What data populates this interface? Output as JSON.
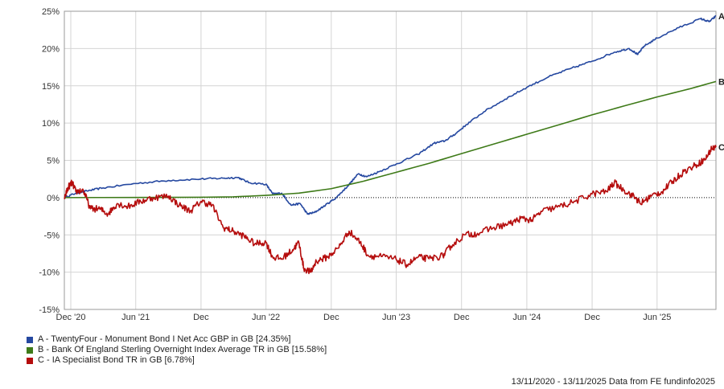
{
  "chart_data": {
    "type": "line",
    "ylim": [
      -15,
      25
    ],
    "yticks": [
      "25%",
      "20%",
      "15%",
      "10%",
      "5%",
      "0%",
      "-5%",
      "-10%",
      "-15%"
    ],
    "ytick_values": [
      25,
      20,
      15,
      10,
      5,
      0,
      -5,
      -10,
      -15
    ],
    "xticks": [
      "Dec '20",
      "Jun '21",
      "Dec",
      "Jun '22",
      "Dec",
      "Jun '23",
      "Dec",
      "Jun '24",
      "Dec",
      "Jun '25"
    ],
    "xtick_dates": [
      "2020-12-01",
      "2021-06-01",
      "2021-12-01",
      "2022-06-01",
      "2022-12-01",
      "2023-06-01",
      "2023-12-01",
      "2024-06-01",
      "2024-12-01",
      "2025-06-01"
    ],
    "x_range": [
      "2020-11-13",
      "2025-11-13"
    ],
    "grid": true,
    "zero_line": true,
    "series": [
      {
        "name": "A - TwentyFour - Monument Bond I Net Acc GBP in GB [24.35%]",
        "short": "A",
        "color": "#2548a0",
        "points": [
          [
            "2020-11-13",
            0
          ],
          [
            "2020-12-15",
            0.6
          ],
          [
            "2021-01-15",
            0.9
          ],
          [
            "2021-03-01",
            1.3
          ],
          [
            "2021-06-01",
            1.9
          ],
          [
            "2021-09-01",
            2.3
          ],
          [
            "2021-12-01",
            2.5
          ],
          [
            "2022-02-01",
            2.6
          ],
          [
            "2022-03-15",
            2.7
          ],
          [
            "2022-04-15",
            2.0
          ],
          [
            "2022-06-01",
            1.8
          ],
          [
            "2022-06-20",
            0.5
          ],
          [
            "2022-07-15",
            0.6
          ],
          [
            "2022-08-10",
            -1.0
          ],
          [
            "2022-09-05",
            -0.8
          ],
          [
            "2022-09-25",
            -2.2
          ],
          [
            "2022-10-15",
            -2.0
          ],
          [
            "2022-11-15",
            -1.0
          ],
          [
            "2022-12-15",
            0.0
          ],
          [
            "2023-01-15",
            1.5
          ],
          [
            "2023-02-15",
            3.2
          ],
          [
            "2023-03-10",
            2.8
          ],
          [
            "2023-04-15",
            3.5
          ],
          [
            "2023-06-01",
            4.5
          ],
          [
            "2023-08-01",
            5.8
          ],
          [
            "2023-09-15",
            7.3
          ],
          [
            "2023-10-15",
            7.6
          ],
          [
            "2023-11-15",
            8.6
          ],
          [
            "2023-12-15",
            9.8
          ],
          [
            "2024-02-01",
            11.5
          ],
          [
            "2024-04-01",
            13.2
          ],
          [
            "2024-06-01",
            14.8
          ],
          [
            "2024-08-01",
            16.2
          ],
          [
            "2024-10-01",
            17.3
          ],
          [
            "2024-12-01",
            18.3
          ],
          [
            "2025-02-01",
            19.5
          ],
          [
            "2025-03-15",
            20.0
          ],
          [
            "2025-04-08",
            19.2
          ],
          [
            "2025-04-25",
            20.3
          ],
          [
            "2025-06-01",
            21.4
          ],
          [
            "2025-08-01",
            22.8
          ],
          [
            "2025-10-01",
            24.0
          ],
          [
            "2025-10-25",
            23.6
          ],
          [
            "2025-11-13",
            24.35
          ]
        ]
      },
      {
        "name": "B - Bank Of England Sterling Overnight Index Average TR in GB [15.58%]",
        "short": "B",
        "color": "#3e7a18",
        "points": [
          [
            "2020-11-13",
            0
          ],
          [
            "2021-12-01",
            0.05
          ],
          [
            "2022-03-01",
            0.1
          ],
          [
            "2022-06-01",
            0.3
          ],
          [
            "2022-09-01",
            0.6
          ],
          [
            "2022-12-01",
            1.2
          ],
          [
            "2023-03-01",
            2.2
          ],
          [
            "2023-06-01",
            3.4
          ],
          [
            "2023-09-01",
            4.6
          ],
          [
            "2023-12-01",
            5.9
          ],
          [
            "2024-03-01",
            7.2
          ],
          [
            "2024-06-01",
            8.5
          ],
          [
            "2024-09-01",
            9.8
          ],
          [
            "2024-12-01",
            11.1
          ],
          [
            "2025-03-01",
            12.3
          ],
          [
            "2025-06-01",
            13.5
          ],
          [
            "2025-09-01",
            14.6
          ],
          [
            "2025-11-13",
            15.58
          ]
        ]
      },
      {
        "name": "C - IA Specialist Bond TR in GB [6.78%]",
        "short": "C",
        "color": "#b50d0d",
        "points": [
          [
            "2020-11-13",
            0
          ],
          [
            "2020-11-25",
            1.5
          ],
          [
            "2020-12-05",
            2.0
          ],
          [
            "2020-12-15",
            0.8
          ],
          [
            "2021-01-05",
            1.0
          ],
          [
            "2021-01-25",
            -1.5
          ],
          [
            "2021-02-20",
            -1.5
          ],
          [
            "2021-03-15",
            -2.2
          ],
          [
            "2021-04-10",
            -0.8
          ],
          [
            "2021-05-10",
            -1.2
          ],
          [
            "2021-06-15",
            -0.5
          ],
          [
            "2021-07-20",
            0.0
          ],
          [
            "2021-09-01",
            0.2
          ],
          [
            "2021-10-01",
            -1.0
          ],
          [
            "2021-11-01",
            -1.8
          ],
          [
            "2021-12-01",
            -0.5
          ],
          [
            "2022-01-01",
            -1.0
          ],
          [
            "2022-02-01",
            -4.0
          ],
          [
            "2022-03-01",
            -4.5
          ],
          [
            "2022-04-01",
            -5.2
          ],
          [
            "2022-05-01",
            -6.2
          ],
          [
            "2022-06-01",
            -6.0
          ],
          [
            "2022-06-20",
            -8.0
          ],
          [
            "2022-07-15",
            -8.2
          ],
          [
            "2022-08-15",
            -7.0
          ],
          [
            "2022-09-01",
            -6.0
          ],
          [
            "2022-09-15",
            -9.5
          ],
          [
            "2022-10-05",
            -10.0
          ],
          [
            "2022-10-20",
            -8.5
          ],
          [
            "2022-11-20",
            -8.0
          ],
          [
            "2022-12-20",
            -6.8
          ],
          [
            "2023-01-20",
            -4.5
          ],
          [
            "2023-02-20",
            -6.0
          ],
          [
            "2023-03-15",
            -7.8
          ],
          [
            "2023-04-20",
            -7.9
          ],
          [
            "2023-06-01",
            -8.3
          ],
          [
            "2023-07-01",
            -9.0
          ],
          [
            "2023-08-01",
            -8.0
          ],
          [
            "2023-09-01",
            -8.2
          ],
          [
            "2023-10-10",
            -7.8
          ],
          [
            "2023-11-01",
            -6.5
          ],
          [
            "2023-12-10",
            -5.0
          ],
          [
            "2024-01-15",
            -4.8
          ],
          [
            "2024-03-01",
            -4.0
          ],
          [
            "2024-04-15",
            -3.5
          ],
          [
            "2024-05-15",
            -2.8
          ],
          [
            "2024-06-15",
            -3.0
          ],
          [
            "2024-07-15",
            -1.8
          ],
          [
            "2024-09-01",
            -1.2
          ],
          [
            "2024-10-15",
            -0.5
          ],
          [
            "2024-12-01",
            0.5
          ],
          [
            "2025-01-10",
            0.8
          ],
          [
            "2025-02-01",
            2.0
          ],
          [
            "2025-03-01",
            1.0
          ],
          [
            "2025-04-01",
            0.0
          ],
          [
            "2025-04-15",
            -0.8
          ],
          [
            "2025-05-15",
            0.2
          ],
          [
            "2025-06-15",
            0.8
          ],
          [
            "2025-07-15",
            2.2
          ],
          [
            "2025-08-15",
            3.5
          ],
          [
            "2025-09-15",
            4.3
          ],
          [
            "2025-10-15",
            5.2
          ],
          [
            "2025-11-01",
            6.6
          ],
          [
            "2025-11-13",
            6.78
          ]
        ]
      }
    ]
  },
  "legend": [
    {
      "label": "A - TwentyFour - Monument Bond I Net Acc GBP in GB [24.35%]",
      "color": "#2548a0"
    },
    {
      "label": "B - Bank Of England Sterling Overnight Index Average TR in GB [15.58%]",
      "color": "#3e7a18"
    },
    {
      "label": "C - IA Specialist Bond TR in GB [6.78%]",
      "color": "#b50d0d"
    }
  ],
  "source": "13/11/2020 - 13/11/2025 Data from FE fundinfo2025"
}
